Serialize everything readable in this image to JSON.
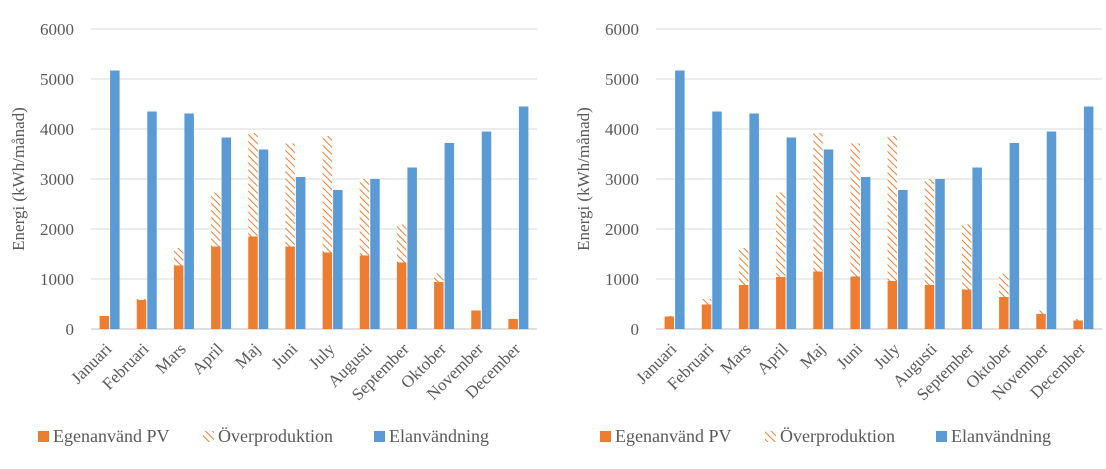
{
  "colors": {
    "self_used": "#ED7D31",
    "overproduction": "#ED7D31",
    "usage": "#5B9BD5",
    "grid": "#D9D9D9",
    "axis": "#BFBFBF"
  },
  "chart_data": [
    {
      "type": "bar",
      "stacked_series": [
        "Egenanvänd PV",
        "Överproduktion"
      ],
      "categories": [
        "Januari",
        "Februari",
        "Mars",
        "April",
        "Maj",
        "Juni",
        "July",
        "Augusti",
        "September",
        "Oktober",
        "November",
        "December"
      ],
      "series": [
        {
          "name": "Egenanvänd PV",
          "pattern": "solid",
          "values": [
            260,
            580,
            1270,
            1650,
            1850,
            1650,
            1530,
            1470,
            1330,
            940,
            370,
            200
          ]
        },
        {
          "name": "Överproduktion",
          "pattern": "hatched",
          "values": [
            0,
            20,
            350,
            1080,
            2070,
            2060,
            2330,
            1530,
            760,
            170,
            0,
            0
          ]
        },
        {
          "name": "Elanvändning",
          "pattern": "solid",
          "values": [
            5170,
            4350,
            4310,
            3830,
            3590,
            3040,
            2780,
            3000,
            3230,
            3720,
            3950,
            4450
          ]
        }
      ],
      "ylabel": "Energi (kWh/månad)",
      "yticks": [
        0,
        1000,
        2000,
        3000,
        4000,
        5000,
        6000
      ],
      "ylim": [
        0,
        6000
      ],
      "grid": true,
      "legend_position": "bottom"
    },
    {
      "type": "bar",
      "stacked_series": [
        "Egenanvänd PV",
        "Överproduktion"
      ],
      "categories": [
        "Januari",
        "Februari",
        "Mars",
        "April",
        "Maj",
        "Juni",
        "July",
        "Augusti",
        "September",
        "Oktober",
        "November",
        "December"
      ],
      "series": [
        {
          "name": "Egenanvänd PV",
          "pattern": "solid",
          "values": [
            250,
            490,
            880,
            1040,
            1150,
            1050,
            960,
            880,
            790,
            640,
            300,
            170
          ]
        },
        {
          "name": "Överproduktion",
          "pattern": "hatched",
          "values": [
            10,
            110,
            740,
            1690,
            2770,
            2660,
            2900,
            2120,
            1300,
            470,
            70,
            30
          ]
        },
        {
          "name": "Elanvändning",
          "pattern": "solid",
          "values": [
            5170,
            4350,
            4310,
            3830,
            3590,
            3040,
            2780,
            3000,
            3230,
            3720,
            3950,
            4450
          ]
        }
      ],
      "ylabel": "Energi (kWh/månad)",
      "yticks": [
        0,
        1000,
        2000,
        3000,
        4000,
        5000,
        6000
      ],
      "ylim": [
        0,
        6000
      ],
      "grid": true,
      "legend_position": "bottom"
    }
  ]
}
